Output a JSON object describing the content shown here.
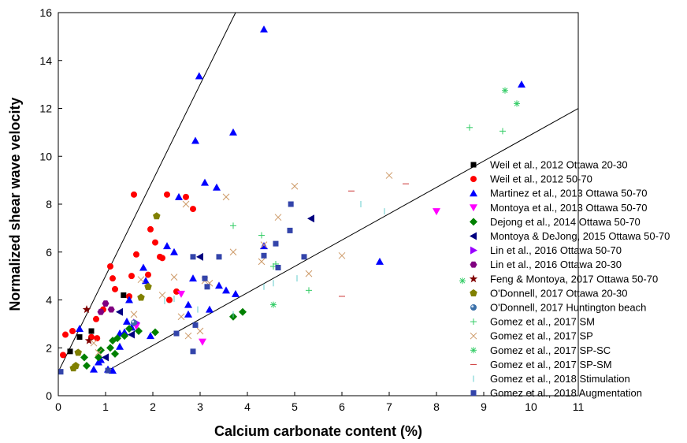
{
  "chart_data": {
    "type": "scatter",
    "xlabel": "Calcium carbonate content (%)",
    "ylabel": "Normalized shear wave velocity",
    "xlim": [
      0,
      11
    ],
    "ylim": [
      0,
      16
    ],
    "xticks": [
      0,
      1,
      2,
      3,
      4,
      5,
      6,
      7,
      8,
      9,
      10,
      11
    ],
    "yticks": [
      0,
      2,
      4,
      6,
      8,
      10,
      12,
      14,
      16
    ],
    "grid": false,
    "legend_position": "right",
    "reference_lines": [
      {
        "x": [
          0,
          3.75
        ],
        "y": [
          1,
          16
        ]
      },
      {
        "x": [
          1,
          11
        ],
        "y": [
          1,
          12
        ]
      }
    ],
    "series": [
      {
        "name": "Weil et al., 2012 Ottawa 20-30",
        "marker": "square",
        "color": "#000000",
        "points": [
          [
            0.25,
            1.85
          ],
          [
            0.45,
            2.45
          ],
          [
            0.7,
            2.7
          ],
          [
            1.38,
            4.2
          ]
        ]
      },
      {
        "name": "Weil et al., 2012 50-70",
        "marker": "circle",
        "color": "#ff0000",
        "points": [
          [
            0.1,
            1.7
          ],
          [
            0.15,
            2.55
          ],
          [
            0.3,
            2.7
          ],
          [
            0.7,
            2.45
          ],
          [
            0.82,
            2.4
          ],
          [
            0.8,
            3.2
          ],
          [
            0.95,
            3.6
          ],
          [
            1.1,
            5.4
          ],
          [
            1.15,
            4.9
          ],
          [
            1.2,
            4.45
          ],
          [
            1.5,
            4.15
          ],
          [
            1.55,
            5.0
          ],
          [
            1.65,
            5.9
          ],
          [
            1.6,
            8.4
          ],
          [
            1.9,
            5.05
          ],
          [
            1.95,
            6.95
          ],
          [
            2.05,
            6.4
          ],
          [
            2.15,
            5.8
          ],
          [
            2.2,
            5.75
          ],
          [
            2.3,
            8.4
          ],
          [
            2.35,
            4.0
          ],
          [
            2.5,
            4.35
          ],
          [
            2.7,
            8.3
          ],
          [
            2.85,
            7.8
          ]
        ]
      },
      {
        "name": "Martinez et al., 2013 Ottawa 50-70",
        "marker": "triangle-up",
        "color": "#0000ff",
        "points": [
          [
            0.45,
            2.8
          ],
          [
            0.75,
            1.1
          ],
          [
            0.85,
            1.4
          ],
          [
            0.9,
            1.5
          ],
          [
            1.05,
            1.1
          ],
          [
            1.15,
            1.05
          ],
          [
            1.3,
            2.05
          ],
          [
            1.3,
            2.6
          ],
          [
            1.4,
            2.65
          ],
          [
            1.45,
            3.1
          ],
          [
            1.5,
            4.0
          ],
          [
            1.55,
            2.85
          ],
          [
            1.8,
            5.35
          ],
          [
            1.85,
            4.8
          ],
          [
            1.95,
            2.5
          ],
          [
            2.3,
            6.25
          ],
          [
            2.45,
            6.0
          ],
          [
            2.55,
            8.3
          ],
          [
            2.75,
            3.8
          ],
          [
            2.75,
            3.4
          ],
          [
            2.85,
            4.9
          ],
          [
            2.9,
            10.65
          ],
          [
            2.98,
            13.35
          ],
          [
            3.1,
            8.9
          ],
          [
            3.2,
            3.6
          ],
          [
            3.35,
            8.7
          ],
          [
            3.4,
            4.6
          ],
          [
            3.55,
            4.4
          ],
          [
            3.7,
            11.0
          ],
          [
            3.75,
            4.25
          ],
          [
            4.35,
            15.3
          ],
          [
            4.35,
            6.25
          ],
          [
            6.8,
            5.6
          ],
          [
            9.8,
            13.0
          ]
        ]
      },
      {
        "name": "Montoya et al., 2013 Ottawa 50-70",
        "marker": "triangle-down",
        "color": "#ff00ff",
        "points": [
          [
            1.65,
            2.9
          ],
          [
            2.6,
            4.25
          ],
          [
            3.05,
            2.25
          ],
          [
            8.0,
            7.7
          ]
        ]
      },
      {
        "name": "Dejong et al., 2014 Ottawa 50-70",
        "marker": "diamond",
        "color": "#008000",
        "points": [
          [
            0.55,
            1.6
          ],
          [
            0.6,
            1.25
          ],
          [
            0.85,
            1.6
          ],
          [
            0.9,
            1.9
          ],
          [
            1.1,
            2.0
          ],
          [
            1.15,
            2.3
          ],
          [
            1.2,
            1.75
          ],
          [
            1.25,
            2.4
          ],
          [
            1.4,
            2.5
          ],
          [
            1.5,
            2.8
          ],
          [
            1.7,
            2.7
          ],
          [
            2.05,
            2.65
          ],
          [
            3.7,
            3.3
          ],
          [
            3.9,
            3.5
          ]
        ]
      },
      {
        "name": "Montoya & DeJong, 2015 Ottawa 50-70",
        "marker": "triangle-left",
        "color": "#000080",
        "points": [
          [
            1.0,
            1.6
          ],
          [
            1.3,
            3.5
          ],
          [
            1.55,
            2.55
          ],
          [
            3.0,
            5.8
          ],
          [
            5.35,
            7.4
          ]
        ]
      },
      {
        "name": "Lin et al., 2016 Ottawa 50-70",
        "marker": "triangle-right",
        "color": "#9900ff",
        "points": [
          [
            1.65,
            3.05
          ]
        ]
      },
      {
        "name": "Lin et al., 2016 Ottawa 20-30",
        "marker": "hexagon",
        "color": "#800080",
        "points": [
          [
            0.9,
            3.5
          ],
          [
            1.0,
            3.85
          ],
          [
            1.12,
            3.6
          ]
        ]
      },
      {
        "name": "Feng & Montoya, 2017 Ottawa 50-70",
        "marker": "star",
        "color": "#800000",
        "points": [
          [
            0.6,
            3.6
          ],
          [
            0.65,
            2.3
          ]
        ]
      },
      {
        "name": "O'Donnell, 2017 Ottawa 20-30",
        "marker": "pentagon",
        "color": "#808000",
        "points": [
          [
            0.32,
            1.15
          ],
          [
            0.37,
            1.25
          ],
          [
            0.42,
            1.8
          ],
          [
            1.75,
            4.1
          ],
          [
            1.9,
            4.55
          ],
          [
            2.08,
            7.5
          ]
        ]
      },
      {
        "name": "O'Donnell, 2017 Huntington beach",
        "marker": "sphere",
        "color": "#3a6fa8",
        "points": [
          [
            1.6,
            3.05
          ]
        ]
      },
      {
        "name": "Gomez et al., 2017 SM",
        "marker": "plus",
        "color": "#33cc66",
        "points": [
          [
            3.7,
            7.1
          ],
          [
            4.3,
            6.7
          ],
          [
            4.55,
            5.4
          ],
          [
            4.6,
            5.5
          ],
          [
            5.3,
            4.4
          ],
          [
            8.7,
            11.2
          ],
          [
            9.4,
            11.05
          ]
        ]
      },
      {
        "name": "Gomez et al., 2017 SP",
        "marker": "x",
        "color": "#cc9966",
        "points": [
          [
            0.75,
            2.2
          ],
          [
            0.85,
            1.8
          ],
          [
            1.6,
            3.4
          ],
          [
            1.75,
            4.85
          ],
          [
            2.2,
            4.2
          ],
          [
            2.45,
            4.95
          ],
          [
            2.6,
            3.3
          ],
          [
            2.7,
            8.0
          ],
          [
            2.75,
            2.5
          ],
          [
            3.0,
            2.7
          ],
          [
            3.1,
            4.8
          ],
          [
            3.2,
            4.7
          ],
          [
            3.55,
            8.3
          ],
          [
            3.7,
            6.0
          ],
          [
            4.3,
            5.6
          ],
          [
            4.35,
            6.3
          ],
          [
            4.65,
            7.45
          ],
          [
            5.0,
            8.75
          ],
          [
            5.3,
            5.1
          ],
          [
            6.0,
            5.85
          ],
          [
            7.0,
            9.2
          ]
        ]
      },
      {
        "name": "Gomez et al., 2017 SP-SC",
        "marker": "asterisk",
        "color": "#33cc66",
        "points": [
          [
            4.55,
            3.8
          ],
          [
            8.55,
            4.8
          ],
          [
            9.45,
            12.75
          ],
          [
            9.7,
            12.2
          ]
        ]
      },
      {
        "name": "Gomez et al., 2017 SP-SM",
        "marker": "dash",
        "color": "#cc3333",
        "points": [
          [
            6.0,
            4.15
          ],
          [
            6.2,
            8.55
          ],
          [
            7.35,
            8.85
          ]
        ]
      },
      {
        "name": "Gomez et al., 2018 Stimulation",
        "marker": "vline",
        "color": "#66cccc",
        "points": [
          [
            2.25,
            3.95
          ],
          [
            2.45,
            4.05
          ],
          [
            2.95,
            3.6
          ],
          [
            3.7,
            3.4
          ],
          [
            4.35,
            4.55
          ],
          [
            4.55,
            4.7
          ],
          [
            5.05,
            4.9
          ],
          [
            6.4,
            8.0
          ],
          [
            6.9,
            7.7
          ]
        ]
      },
      {
        "name": "Gomez et al., 2018 Augmentation",
        "marker": "square",
        "color": "#3344aa",
        "points": [
          [
            0.05,
            1.0
          ],
          [
            1.05,
            1.05
          ],
          [
            2.5,
            2.6
          ],
          [
            2.85,
            1.85
          ],
          [
            2.9,
            2.95
          ],
          [
            2.85,
            5.8
          ],
          [
            3.1,
            4.9
          ],
          [
            3.15,
            4.55
          ],
          [
            3.4,
            5.8
          ],
          [
            4.35,
            5.85
          ],
          [
            4.6,
            6.35
          ],
          [
            4.65,
            5.35
          ],
          [
            4.9,
            6.9
          ],
          [
            4.92,
            8.0
          ],
          [
            5.2,
            5.8
          ]
        ]
      }
    ]
  }
}
